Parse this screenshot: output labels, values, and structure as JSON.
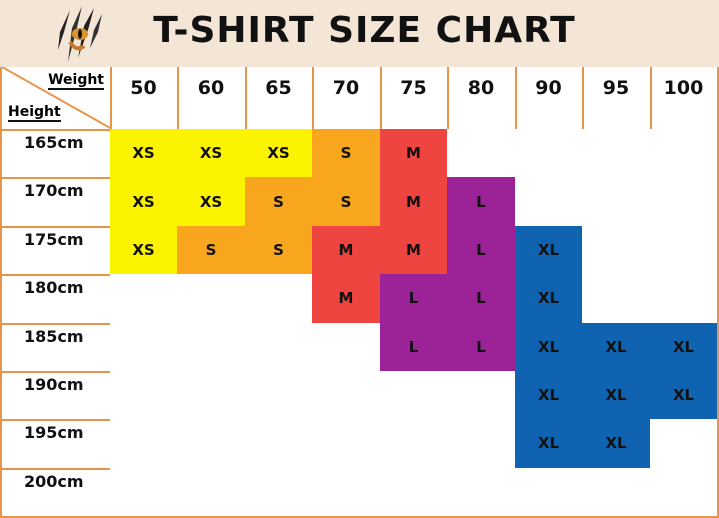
{
  "title": "T-SHIRT SIZE CHART",
  "chart_data": {
    "type": "table",
    "title": "T-SHIRT SIZE CHART",
    "column_header_label": "Weight",
    "row_header_label": "Height",
    "weights": [
      "50",
      "60",
      "65",
      "70",
      "75",
      "80",
      "90",
      "95",
      "100"
    ],
    "heights": [
      "165cm",
      "170cm",
      "175cm",
      "180cm",
      "185cm",
      "190cm",
      "195cm",
      "200cm"
    ],
    "sizes": [
      [
        "XS",
        "XS",
        "XS",
        "S",
        "M",
        "",
        "",
        "",
        ""
      ],
      [
        "XS",
        "XS",
        "S",
        "S",
        "M",
        "L",
        "",
        "",
        ""
      ],
      [
        "XS",
        "S",
        "S",
        "M",
        "M",
        "L",
        "XL",
        "",
        ""
      ],
      [
        "",
        "",
        "",
        "M",
        "L",
        "L",
        "XL",
        "",
        ""
      ],
      [
        "",
        "",
        "",
        "",
        "L",
        "L",
        "XL",
        "XL",
        "XL"
      ],
      [
        "",
        "",
        "",
        "",
        "",
        "",
        "XL",
        "XL",
        "XL"
      ],
      [
        "",
        "",
        "",
        "",
        "",
        "",
        "XL",
        "XL",
        ""
      ],
      [
        "",
        "",
        "",
        "",
        "",
        "",
        "",
        "",
        ""
      ]
    ],
    "size_colors": {
      "XS": "#fcf300",
      "S": "#f8a61e",
      "M": "#ee4541",
      "L": "#9b2397",
      "XL": "#0f63b0"
    }
  },
  "logo_icon": "tiger-eye-claw-icon"
}
